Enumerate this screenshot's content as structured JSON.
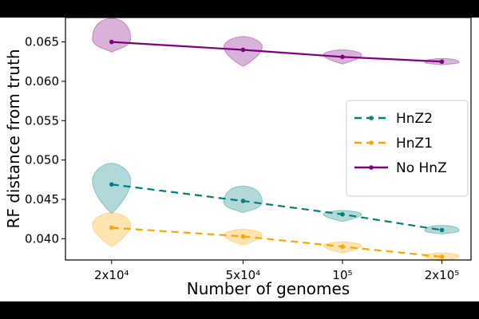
{
  "chart_data": {
    "type": "line",
    "xlabel": "Number of genomes",
    "ylabel": "RF distance from truth",
    "x_scale": "log",
    "x": [
      20000,
      50000,
      100000,
      200000
    ],
    "x_tick_labels": [
      "2x10⁴",
      "5x10⁴",
      "10⁵",
      "2x10⁵"
    ],
    "y_ticks": [
      0.04,
      0.045,
      0.05,
      0.055,
      0.06,
      0.065
    ],
    "y_tick_labels": [
      "0.040",
      "0.045",
      "0.050",
      "0.055",
      "0.060",
      "0.065"
    ],
    "ylim": [
      0.0373,
      0.0681
    ],
    "legend_position": "right",
    "grid": false,
    "series": [
      {
        "name": "HnZ2",
        "color": "#008080",
        "linestyle": "dashed",
        "values": [
          0.0469,
          0.0448,
          0.0431,
          0.0411
        ],
        "distribution_range": [
          [
            0.0432,
            0.0496
          ],
          [
            0.0433,
            0.0467
          ],
          [
            0.0422,
            0.0436
          ],
          [
            0.0406,
            0.0417
          ]
        ]
      },
      {
        "name": "HnZ1",
        "color": "#FFA500",
        "linestyle": "dashed",
        "values": [
          0.0414,
          0.0403,
          0.039,
          0.0377
        ],
        "distribution_range": [
          [
            0.039,
            0.0433
          ],
          [
            0.0392,
            0.0412
          ],
          [
            0.0382,
            0.0396
          ],
          [
            0.0371,
            0.0382
          ]
        ]
      },
      {
        "name": "No HnZ",
        "color": "#800080",
        "linestyle": "solid",
        "values": [
          0.065,
          0.064,
          0.0631,
          0.0625
        ],
        "distribution_range": [
          [
            0.0637,
            0.068
          ],
          [
            0.0619,
            0.0657
          ],
          [
            0.0622,
            0.064
          ],
          [
            0.0621,
            0.0629
          ]
        ]
      }
    ]
  }
}
